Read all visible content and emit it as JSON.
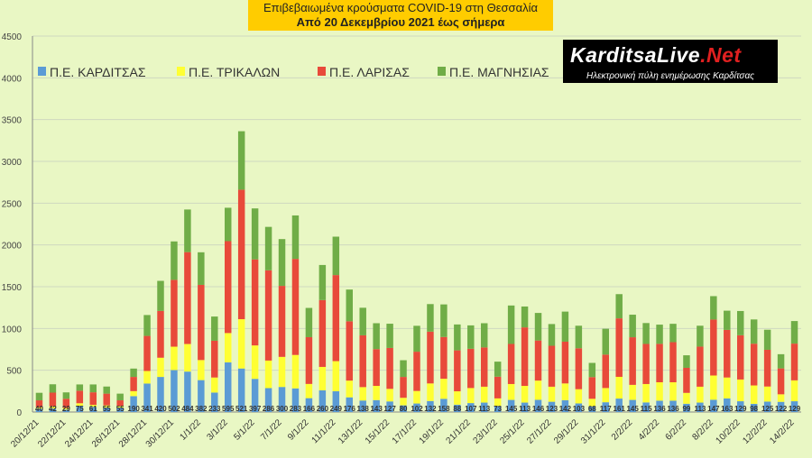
{
  "title": {
    "line1": "Επιβεβαιωμένα κρούσματα COVID-19 στη Θεσσαλία",
    "line2": "Από 20 Δεκεμβρίου 2021 έως σήμερα"
  },
  "logo": {
    "name_main": "KarditsaLive",
    "name_tld": ".Net",
    "tagline": "Ηλεκτρονική πύλη ενημέρωσης Καρδίτσας"
  },
  "colors": {
    "plot_bg": "#e9f7c4",
    "grid": "#cfd8c0",
    "karditsa": "#5b9bd5",
    "trikala": "#ffff33",
    "larisa": "#e84a3a",
    "magnisia": "#70ad47"
  },
  "chart_data": {
    "type": "bar",
    "stacked": true,
    "title": "Επιβεβαιωμένα κρούσματα COVID-19 στη Θεσσαλία",
    "subtitle": "Από 20 Δεκεμβρίου 2021 έως σήμερα",
    "xlabel": "",
    "ylabel": "",
    "ylim": [
      0,
      4500
    ],
    "yticks": [
      0,
      500,
      1000,
      1500,
      2000,
      2500,
      3000,
      3500,
      4000,
      4500
    ],
    "grid": true,
    "legend_position": "top-left",
    "xtick_labels": [
      "20/12/21",
      "22/12/21",
      "24/12/21",
      "26/12/21",
      "28/12/21",
      "30/12/21",
      "1/1/22",
      "3/1/22",
      "5/1/22",
      "7/1/22",
      "9/1/22",
      "11/1/22",
      "13/1/22",
      "15/1/22",
      "17/1/22",
      "19/1/22",
      "21/1/22",
      "23/1/22",
      "25/1/22",
      "27/1/22",
      "29/1/22",
      "31/1/22",
      "2/2/22",
      "4/2/22",
      "6/2/22",
      "8/2/22",
      "10/2/22",
      "12/2/22",
      "14/2/22"
    ],
    "categories": [
      "20/12/21",
      "21/12/21",
      "22/12/21",
      "23/12/21",
      "24/12/21",
      "25/12/21",
      "26/12/21",
      "27/12/21",
      "28/12/21",
      "29/12/21",
      "30/12/21",
      "31/12/21",
      "1/1/22",
      "2/1/22",
      "3/1/22",
      "4/1/22",
      "5/1/22",
      "6/1/22",
      "7/1/22",
      "8/1/22",
      "9/1/22",
      "10/1/22",
      "11/1/22",
      "12/1/22",
      "13/1/22",
      "14/1/22",
      "15/1/22",
      "16/1/22",
      "17/1/22",
      "18/1/22",
      "19/1/22",
      "20/1/22",
      "21/1/22",
      "22/1/22",
      "23/1/22",
      "24/1/22",
      "25/1/22",
      "26/1/22",
      "27/1/22",
      "28/1/22",
      "29/1/22",
      "30/1/22",
      "31/1/22",
      "1/2/22",
      "2/2/22",
      "3/2/22",
      "4/2/22",
      "5/2/22",
      "6/2/22",
      "7/2/22",
      "8/2/22",
      "9/2/22",
      "10/2/22",
      "11/2/22",
      "12/2/22",
      "13/2/22",
      "14/2/22"
    ],
    "series": [
      {
        "name": "Π.Ε. ΚΑΡΔΙΤΣΑΣ",
        "color_key": "karditsa",
        "values": [
          40,
          42,
          29,
          75,
          61,
          55,
          55,
          190,
          341,
          420,
          502,
          484,
          382,
          233,
          595,
          521,
          397,
          286,
          300,
          283,
          166,
          260,
          249,
          176,
          138,
          143,
          127,
          80,
          102,
          132,
          158,
          88,
          107,
          113,
          73,
          145,
          113,
          146,
          123,
          142,
          103,
          68,
          117,
          161,
          145,
          115,
          136,
          136,
          99,
          113,
          147,
          163,
          129,
          98,
          125,
          122,
          129
        ]
      },
      {
        "name": "Π.Ε. ΤΡΙΚΑΛΩΝ",
        "color_key": "trikala",
        "values": [
          15,
          25,
          20,
          30,
          25,
          25,
          15,
          60,
          150,
          230,
          280,
          330,
          240,
          180,
          350,
          590,
          400,
          330,
          360,
          400,
          170,
          280,
          360,
          200,
          160,
          170,
          150,
          90,
          150,
          210,
          240,
          160,
          180,
          190,
          90,
          190,
          200,
          230,
          180,
          200,
          170,
          90,
          170,
          260,
          180,
          220,
          220,
          220,
          130,
          190,
          290,
          250,
          260,
          220,
          180,
          90,
          250
        ]
      },
      {
        "name": "Π.Ε. ΛΑΡΙΣΑΣ",
        "color_key": "larisa",
        "values": [
          85,
          165,
          110,
          150,
          150,
          140,
          70,
          170,
          420,
          560,
          800,
          1100,
          900,
          440,
          1100,
          1550,
          1030,
          1080,
          850,
          1150,
          560,
          800,
          1030,
          710,
          620,
          440,
          490,
          250,
          470,
          620,
          500,
          490,
          470,
          470,
          260,
          480,
          700,
          480,
          490,
          500,
          490,
          260,
          400,
          700,
          570,
          480,
          460,
          480,
          300,
          480,
          670,
          570,
          530,
          500,
          440,
          310,
          440
        ]
      },
      {
        "name": "Π.Ε. ΜΑΓΝΗΣΙΑΣ",
        "color_key": "magnisia",
        "values": [
          90,
          100,
          76,
          75,
          94,
          85,
          80,
          100,
          250,
          360,
          460,
          510,
          390,
          290,
          400,
          700,
          610,
          520,
          560,
          520,
          350,
          420,
          460,
          380,
          330,
          310,
          290,
          200,
          310,
          330,
          390,
          310,
          280,
          290,
          180,
          460,
          250,
          330,
          260,
          360,
          270,
          170,
          310,
          290,
          270,
          250,
          230,
          220,
          150,
          250,
          280,
          230,
          290,
          290,
          240,
          170,
          270
        ]
      }
    ]
  }
}
